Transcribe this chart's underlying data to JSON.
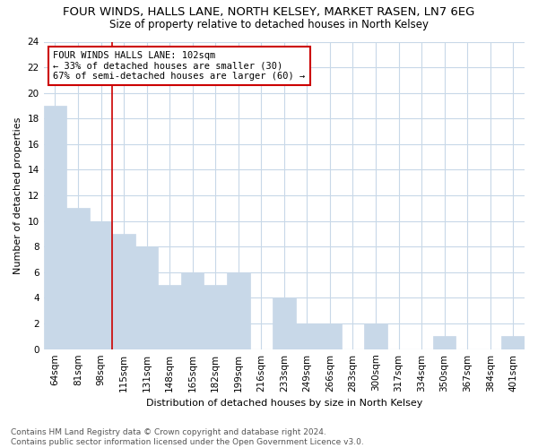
{
  "title": "FOUR WINDS, HALLS LANE, NORTH KELSEY, MARKET RASEN, LN7 6EG",
  "subtitle": "Size of property relative to detached houses in North Kelsey",
  "xlabel": "Distribution of detached houses by size in North Kelsey",
  "ylabel": "Number of detached properties",
  "categories": [
    "64sqm",
    "81sqm",
    "98sqm",
    "115sqm",
    "131sqm",
    "148sqm",
    "165sqm",
    "182sqm",
    "199sqm",
    "216sqm",
    "233sqm",
    "249sqm",
    "266sqm",
    "283sqm",
    "300sqm",
    "317sqm",
    "334sqm",
    "350sqm",
    "367sqm",
    "384sqm",
    "401sqm"
  ],
  "values": [
    19,
    11,
    10,
    9,
    8,
    5,
    6,
    5,
    6,
    0,
    4,
    2,
    2,
    0,
    2,
    0,
    0,
    1,
    0,
    0,
    1
  ],
  "bar_color": "#c8d8e8",
  "vline_x": 2.5,
  "vline_color": "#cc0000",
  "annotation_line1": "FOUR WINDS HALLS LANE: 102sqm",
  "annotation_line2": "← 33% of detached houses are smaller (30)",
  "annotation_line3": "67% of semi-detached houses are larger (60) →",
  "annotation_box_color": "#cc0000",
  "ylim": [
    0,
    24
  ],
  "yticks": [
    0,
    2,
    4,
    6,
    8,
    10,
    12,
    14,
    16,
    18,
    20,
    22,
    24
  ],
  "footnote": "Contains HM Land Registry data © Crown copyright and database right 2024.\nContains public sector information licensed under the Open Government Licence v3.0.",
  "bg_color": "#ffffff",
  "grid_color": "#c8d8e8",
  "title_fontsize": 9.5,
  "subtitle_fontsize": 8.5,
  "axis_label_fontsize": 8,
  "tick_fontsize": 7.5,
  "annotation_fontsize": 7.5,
  "footnote_fontsize": 6.5
}
